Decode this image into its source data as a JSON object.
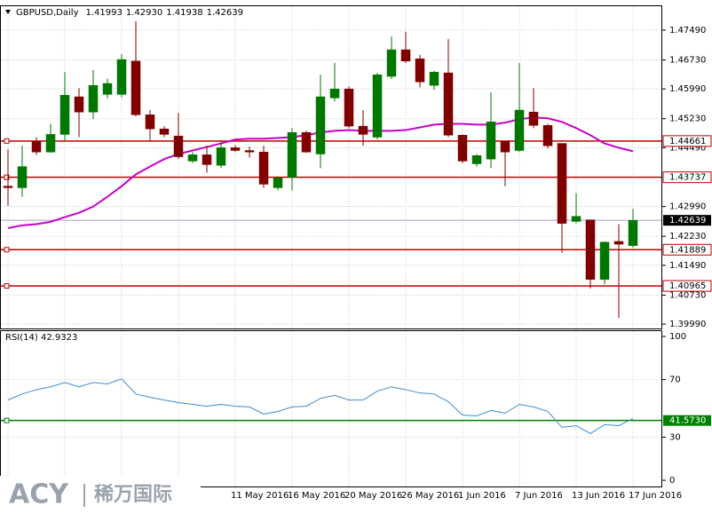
{
  "chart_data": [
    {
      "type": "candlestick",
      "title": "GBPUSD,Daily",
      "header_values": [
        "1.41993",
        "1.42930",
        "1.41938",
        "1.42639"
      ],
      "categories": [
        null,
        null,
        null,
        null,
        null,
        null,
        null,
        null,
        null,
        null,
        null,
        null,
        null,
        null,
        null,
        null,
        "11 May 2016",
        null,
        null,
        null,
        "16 May 2016",
        null,
        null,
        null,
        "20 May 2016",
        null,
        null,
        null,
        "26 May 2016",
        null,
        null,
        null,
        "1 Jun 2016",
        null,
        null,
        null,
        "7 Jun 2016",
        null,
        null,
        null,
        "13 Jun 2016",
        null,
        null,
        null,
        "17 Jun 2016"
      ],
      "open": [
        1.4351,
        1.4347,
        1.4465,
        1.4438,
        1.4483,
        1.4579,
        1.454,
        1.4585,
        1.4585,
        1.467,
        1.4533,
        1.4497,
        1.4479,
        1.4415,
        1.4431,
        1.4404,
        1.4449,
        1.4442,
        1.4438,
        1.4347,
        1.4374,
        1.4488,
        1.4433,
        1.4576,
        1.4599,
        1.4504,
        1.4476,
        1.4631,
        1.4699,
        1.4676,
        1.4608,
        1.464,
        1.4481,
        1.4408,
        1.442,
        1.4465,
        1.4442,
        1.454,
        1.4506,
        1.446,
        1.4261,
        1.4265,
        1.4113,
        1.421,
        1.41993
      ],
      "high": [
        1.4445,
        1.4454,
        1.4476,
        1.451,
        1.4642,
        1.4601,
        1.4647,
        1.4625,
        1.4688,
        1.4772,
        1.4545,
        1.4504,
        1.4538,
        1.4438,
        1.4454,
        1.4465,
        1.4456,
        1.4452,
        1.4454,
        1.4376,
        1.4499,
        1.4492,
        1.4635,
        1.4665,
        1.4605,
        1.4545,
        1.464,
        1.4733,
        1.4745,
        1.4686,
        1.4645,
        1.4726,
        1.4483,
        1.4433,
        1.459,
        1.4465,
        1.4665,
        1.4601,
        1.451,
        1.446,
        1.4333,
        1.4265,
        1.421,
        1.4254,
        1.4293
      ],
      "low": [
        1.4301,
        1.4324,
        1.4431,
        1.4436,
        1.4465,
        1.4476,
        1.4522,
        1.4575,
        1.4578,
        1.4529,
        1.4465,
        1.4476,
        1.442,
        1.441,
        1.4385,
        1.4397,
        1.4438,
        1.4424,
        1.4347,
        1.434,
        1.434,
        1.4436,
        1.4397,
        1.4567,
        1.4499,
        1.4454,
        1.447,
        1.4624,
        1.4665,
        1.4603,
        1.4597,
        1.4476,
        1.441,
        1.4401,
        1.4397,
        1.4351,
        1.4438,
        1.4499,
        1.4447,
        1.4181,
        1.4256,
        1.409,
        1.4101,
        1.4015,
        1.41938
      ],
      "close": [
        1.4347,
        1.4401,
        1.4438,
        1.4483,
        1.4583,
        1.454,
        1.4608,
        1.4613,
        1.4674,
        1.4533,
        1.4497,
        1.4483,
        1.4426,
        1.4431,
        1.4406,
        1.4449,
        1.4442,
        1.4438,
        1.4356,
        1.4372,
        1.4488,
        1.4438,
        1.4579,
        1.4599,
        1.4504,
        1.4483,
        1.4635,
        1.4699,
        1.467,
        1.4617,
        1.4642,
        1.4481,
        1.4415,
        1.4429,
        1.4515,
        1.4438,
        1.4545,
        1.4506,
        1.4454,
        1.4256,
        1.4274,
        1.4113,
        1.4208,
        1.4203,
        1.42639
      ],
      "up_color": "#007800",
      "down_color": "#800000",
      "ma": {
        "color": "#c800c8",
        "values": [
          1.4244,
          1.4251,
          1.4254,
          1.426,
          1.4272,
          1.4283,
          1.4299,
          1.4324,
          1.4351,
          1.4381,
          1.4401,
          1.442,
          1.4433,
          1.4442,
          1.4451,
          1.446,
          1.447,
          1.4472,
          1.4472,
          1.4474,
          1.4476,
          1.4481,
          1.4488,
          1.4492,
          1.4494,
          1.4492,
          1.4492,
          1.4492,
          1.4494,
          1.4501,
          1.4508,
          1.451,
          1.451,
          1.4508,
          1.4508,
          1.4513,
          1.4522,
          1.4526,
          1.4524,
          1.4515,
          1.4499,
          1.4481,
          1.446,
          1.4449,
          1.444
        ]
      },
      "ylim": [
        1.3988,
        1.481
      ],
      "yticks": [
        {
          "value": 1.4749,
          "label": "1.47490"
        },
        {
          "value": 1.4673,
          "label": "1.46730"
        },
        {
          "value": 1.4599,
          "label": "1.45990"
        },
        {
          "value": 1.4523,
          "label": "1.45230"
        },
        {
          "value": 1.4449,
          "label": "1.44490"
        },
        {
          "value": 1.4299,
          "label": "1.42990"
        },
        {
          "value": 1.4223,
          "label": "1.42230"
        },
        {
          "value": 1.4149,
          "label": "1.41490"
        },
        {
          "value": 1.4073,
          "label": "1.40730"
        },
        {
          "value": 1.3999,
          "label": "1.39990"
        }
      ],
      "levels": [
        {
          "value": 1.44661,
          "label": "1.44661"
        },
        {
          "value": 1.43737,
          "label": "1.43737"
        },
        {
          "value": 1.41889,
          "label": "1.41889"
        },
        {
          "value": 1.40965,
          "label": "1.40965"
        }
      ],
      "level_color": "#c00000",
      "current": {
        "value": 1.42639,
        "label": "1.42639"
      },
      "grid": true
    },
    {
      "type": "line",
      "title": "RSI(14) 42.9323",
      "color": "#3c8cd2",
      "values": [
        55.8,
        60,
        63,
        65,
        68,
        65,
        68,
        67,
        70.5,
        60,
        57.7,
        55.8,
        54,
        52.8,
        51.5,
        52.8,
        51.5,
        51,
        46,
        47.9,
        51,
        51.5,
        57,
        59,
        55.8,
        55.8,
        62,
        65,
        63,
        60.7,
        60,
        54.6,
        45.4,
        44.8,
        48.5,
        46.6,
        52.8,
        51,
        47.9,
        36.8,
        38,
        32.5,
        38.7,
        38,
        42.9323
      ],
      "ylim": [
        -4.3,
        103.7
      ],
      "yticks": [
        0,
        30,
        70,
        100
      ],
      "level": {
        "value": 41.573,
        "label": "41.5730"
      },
      "level_color": "#008000",
      "grid": true
    }
  ],
  "watermark": {
    "brand": "ACY",
    "name": "稀万国际"
  }
}
